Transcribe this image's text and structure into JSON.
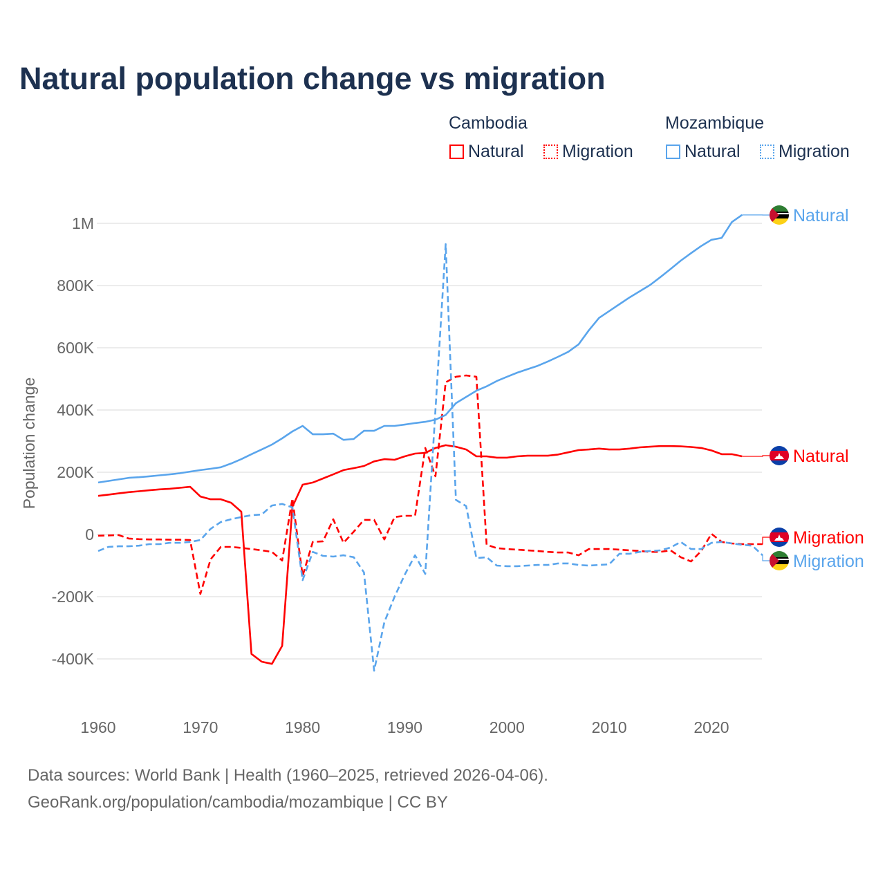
{
  "chart_data": {
    "type": "line",
    "title": "Natural population change vs migration",
    "xlabel": "",
    "ylabel": "Population change",
    "xlim": [
      1960,
      2025
    ],
    "ylim": [
      -400000,
      1000000
    ],
    "grid": true,
    "x_ticks": [
      "1960",
      "1970",
      "1980",
      "1990",
      "2000",
      "2010",
      "2020"
    ],
    "y_ticks": [
      {
        "v": 1000000,
        "label": "1M"
      },
      {
        "v": 800000,
        "label": "800K"
      },
      {
        "v": 600000,
        "label": "600K"
      },
      {
        "v": 400000,
        "label": "400K"
      },
      {
        "v": 200000,
        "label": "200K"
      },
      {
        "v": 0,
        "label": "0"
      },
      {
        "v": -200000,
        "label": "-200K"
      },
      {
        "v": -400000,
        "label": "-400K"
      }
    ],
    "legend": {
      "placement": "top-right",
      "groups": [
        {
          "country": "Cambodia",
          "items": [
            "Natural",
            "Migration"
          ]
        },
        {
          "country": "Mozambique",
          "items": [
            "Natural",
            "Migration"
          ]
        }
      ]
    },
    "series": [
      {
        "name": "Cambodia Natural",
        "country": "Cambodia",
        "kind": "Natural",
        "color": "#ff0000",
        "dashed": false,
        "start": 1960,
        "end_label": "Natural",
        "values_k": [
          124,
          128,
          132,
          136,
          139,
          142,
          145,
          147,
          150,
          153,
          122,
          113,
          113,
          102,
          73,
          -384,
          -409,
          -416,
          -358,
          89,
          160,
          167,
          180,
          193,
          207,
          213,
          220,
          235,
          242,
          240,
          251,
          260,
          262,
          278,
          287,
          282,
          273,
          251,
          251,
          247,
          247,
          251,
          253,
          253,
          253,
          257,
          264,
          271,
          273,
          276,
          273,
          273,
          276,
          280,
          282,
          284,
          284,
          283,
          281,
          278,
          270,
          258,
          258,
          251
        ]
      },
      {
        "name": "Cambodia Migration",
        "country": "Cambodia",
        "kind": "Migration",
        "color": "#ff0000",
        "dashed": true,
        "start": 1960,
        "end_label": "Migration",
        "values_k": [
          -4,
          -3,
          -2,
          -13,
          -15,
          -16,
          -16,
          -17,
          -17,
          -18,
          -191,
          -80,
          -40,
          -40,
          -43,
          -47,
          -51,
          -56,
          -84,
          116,
          -133,
          -24,
          -22,
          49,
          -27,
          9,
          47,
          47,
          -16,
          56,
          60,
          60,
          278,
          187,
          489,
          507,
          511,
          507,
          -33,
          -44,
          -47,
          -49,
          -51,
          -53,
          -56,
          -58,
          -58,
          -67,
          -47,
          -47,
          -47,
          -49,
          -51,
          -53,
          -56,
          -56,
          -51,
          -73,
          -87,
          -53,
          2,
          -24,
          -29,
          -31,
          -31,
          -31
        ]
      },
      {
        "name": "Mozambique Natural",
        "country": "Mozambique",
        "kind": "Natural",
        "color": "#5aa5ec",
        "dashed": false,
        "start": 1960,
        "end_label": "Natural",
        "values_k": [
          167,
          172,
          177,
          182,
          184,
          187,
          190,
          193,
          197,
          202,
          207,
          211,
          216,
          228,
          242,
          258,
          273,
          289,
          309,
          331,
          349,
          322,
          322,
          324,
          304,
          307,
          333,
          333,
          349,
          349,
          353,
          358,
          362,
          369,
          384,
          422,
          442,
          462,
          476,
          493,
          507,
          520,
          531,
          542,
          556,
          571,
          587,
          611,
          656,
          696,
          718,
          740,
          762,
          782,
          802,
          827,
          853,
          880,
          904,
          927,
          947,
          953,
          1004,
          1027
        ]
      },
      {
        "name": "Mozambique Migration",
        "country": "Mozambique",
        "kind": "Migration",
        "color": "#5aa5ec",
        "dashed": true,
        "start": 1960,
        "end_label": "Migration",
        "values_k": [
          -53,
          -40,
          -38,
          -38,
          -36,
          -31,
          -31,
          -27,
          -27,
          -24,
          -18,
          18,
          40,
          49,
          56,
          62,
          64,
          93,
          98,
          87,
          -147,
          -56,
          -69,
          -71,
          -67,
          -73,
          -122,
          -438,
          -282,
          -200,
          -129,
          -67,
          -127,
          400,
          933,
          111,
          91,
          -76,
          -73,
          -100,
          -102,
          -102,
          -100,
          -98,
          -98,
          -93,
          -93,
          -98,
          -100,
          -98,
          -96,
          -62,
          -62,
          -56,
          -53,
          -51,
          -42,
          -24,
          -47,
          -47,
          -27,
          -24,
          -29,
          -33,
          -36,
          -67
        ]
      }
    ]
  },
  "footer": {
    "line1": "Data sources: World Bank | Health (1960–2025, retrieved 2026-04-06).",
    "line2": "GeoRank.org/population/cambodia/mozambique | CC BY"
  }
}
